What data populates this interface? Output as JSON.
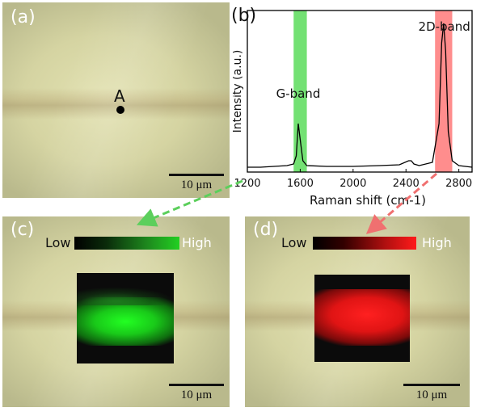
{
  "panels": {
    "a": {
      "label": "(a)",
      "point_label": "A",
      "scale_label": "10 μm"
    },
    "b": {
      "label": "(b)"
    },
    "c": {
      "label": "(c)",
      "low_label": "Low",
      "high_label": "High",
      "scale_label": "10 μm"
    },
    "d": {
      "label": "(d)",
      "low_label": "Low",
      "high_label": "High",
      "scale_label": "10 μm"
    }
  },
  "colors": {
    "g_band": "#00c800",
    "2d_band": "#ff3030",
    "spectrum_line": "#000000"
  },
  "chart_data": {
    "type": "line",
    "title": "",
    "xlabel": "Raman shift (cm-1)",
    "ylabel": "Intensity (a.u.)",
    "xlim": [
      1200,
      2900
    ],
    "x_ticks": [
      1200,
      1600,
      2000,
      2400,
      2800
    ],
    "y_ticks": "none",
    "highlight_bands": [
      {
        "name": "G-band",
        "range": [
          1550,
          1650
        ]
      },
      {
        "name": "2D-band",
        "range": [
          2620,
          2750
        ]
      }
    ],
    "annotations": [
      {
        "text": "G-band",
        "x": 1585
      },
      {
        "text": "2D-band",
        "x": 2690
      }
    ],
    "series": [
      {
        "x": [
          1200,
          1300,
          1400,
          1500,
          1550,
          1570,
          1585,
          1600,
          1620,
          1650,
          1800,
          2000,
          2200,
          2350,
          2420,
          2440,
          2460,
          2500,
          2600,
          2650,
          2670,
          2685,
          2700,
          2720,
          2750,
          2800,
          2900
        ],
        "y": [
          0.03,
          0.03,
          0.035,
          0.04,
          0.05,
          0.1,
          0.3,
          0.2,
          0.07,
          0.04,
          0.035,
          0.035,
          0.04,
          0.045,
          0.07,
          0.07,
          0.05,
          0.04,
          0.06,
          0.3,
          0.8,
          0.92,
          0.75,
          0.25,
          0.07,
          0.04,
          0.03
        ]
      }
    ]
  }
}
